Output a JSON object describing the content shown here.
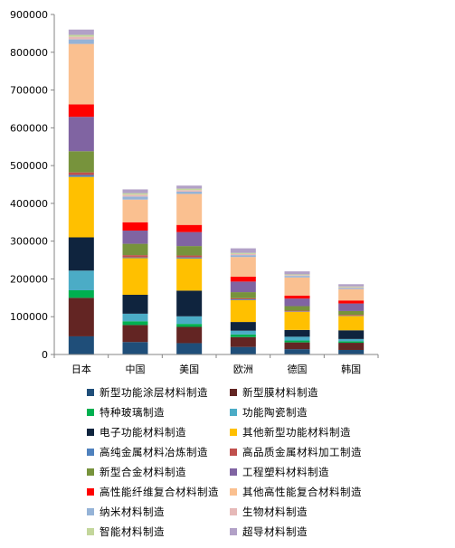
{
  "chart_data": {
    "type": "bar",
    "stacked": true,
    "title": "",
    "xlabel": "",
    "ylabel": "",
    "ylim": [
      0,
      900000
    ],
    "yticks": [
      0,
      100000,
      200000,
      300000,
      400000,
      500000,
      600000,
      700000,
      800000,
      900000
    ],
    "ytick_labels": [
      "0",
      "100000",
      "200000",
      "300000",
      "400000",
      "500000",
      "600000",
      "700000",
      "800000",
      "900000"
    ],
    "grid": false,
    "legend_position": "bottom",
    "categories": [
      "日本",
      "中国",
      "美国",
      "欧洲",
      "德国",
      "韩国"
    ],
    "series": [
      {
        "name": "新型功能涂层材料制造",
        "color": "#1F4E79",
        "values": [
          48000,
          33000,
          30000,
          20000,
          14000,
          12000
        ]
      },
      {
        "name": "新型膜材料制造",
        "color": "#632523",
        "values": [
          102000,
          45000,
          43000,
          26000,
          18000,
          19000
        ]
      },
      {
        "name": "特种玻璃制造",
        "color": "#00B050",
        "values": [
          20000,
          10000,
          8000,
          7000,
          5000,
          4000
        ]
      },
      {
        "name": "功能陶瓷制造",
        "color": "#4BACC6",
        "values": [
          52000,
          20000,
          20000,
          10000,
          10000,
          6000
        ]
      },
      {
        "name": "电子功能材料制造",
        "color": "#0F243E",
        "values": [
          88000,
          50000,
          68000,
          23000,
          18000,
          23000
        ]
      },
      {
        "name": "其他新型功能材料制造",
        "color": "#FFC000",
        "values": [
          160000,
          97000,
          85000,
          58000,
          48000,
          38000
        ]
      },
      {
        "name": "高纯金属材料冶炼制造",
        "color": "#4F81BD",
        "values": [
          5000,
          2000,
          3000,
          2000,
          1000,
          1000
        ]
      },
      {
        "name": "高品质金属材料加工制造",
        "color": "#C0504D",
        "values": [
          7000,
          6000,
          5000,
          3000,
          2000,
          2000
        ]
      },
      {
        "name": "新型合金材料制造",
        "color": "#77933C",
        "values": [
          56000,
          30000,
          25000,
          16000,
          12000,
          10000
        ]
      },
      {
        "name": "工程塑料材料制造",
        "color": "#8064A2",
        "values": [
          91000,
          35000,
          37000,
          28000,
          20000,
          20000
        ]
      },
      {
        "name": "高性能纤维复合材料制造",
        "color": "#FF0000",
        "values": [
          33000,
          22000,
          19000,
          13000,
          8000,
          8000
        ]
      },
      {
        "name": "其他高性能复合材料制造",
        "color": "#FAC090",
        "values": [
          160000,
          60000,
          82000,
          52000,
          48000,
          30000
        ]
      },
      {
        "name": "纳米材料制造",
        "color": "#95B3D7",
        "values": [
          12000,
          8000,
          6000,
          5000,
          4000,
          3000
        ]
      },
      {
        "name": "生物材料制造",
        "color": "#E6B9B8",
        "values": [
          7000,
          5000,
          4000,
          3000,
          2000,
          2000
        ]
      },
      {
        "name": "智能材料制造",
        "color": "#C3D69B",
        "values": [
          5000,
          4000,
          4000,
          3000,
          2000,
          2000
        ]
      },
      {
        "name": "超导材料制造",
        "color": "#B2A1C7",
        "values": [
          14000,
          10000,
          8000,
          12000,
          8000,
          6000
        ]
      }
    ]
  }
}
